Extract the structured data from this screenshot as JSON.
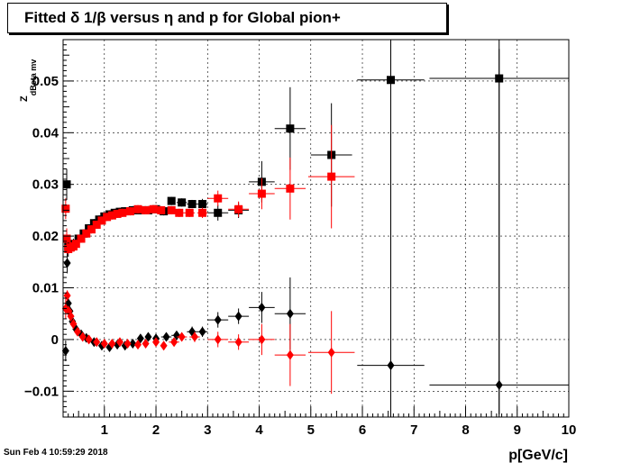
{
  "title": "Fitted δ 1/β versus η and p for Global pion+",
  "timestamp": "Sun Feb  4 10:59:29 2018",
  "chart_data": {
    "type": "scatter",
    "title": "Fitted δ 1/β versus η and p for Global pion+",
    "xlabel": "p[GeV/c]",
    "ylabel": "Z",
    "ylabel_sub": "dBeta mv",
    "xlim": [
      0.2,
      10
    ],
    "ylim": [
      -0.015,
      0.058
    ],
    "xticks": [
      1,
      2,
      3,
      4,
      5,
      6,
      7,
      8,
      9,
      10
    ],
    "xtick_labels": [
      "1",
      "2",
      "3",
      "4",
      "5",
      "6",
      "7",
      "8",
      "9",
      "10"
    ],
    "yticks": [
      -0.01,
      0,
      0.01,
      0.02,
      0.03,
      0.04,
      0.05
    ],
    "ytick_labels": [
      "−0.01",
      "0",
      "0.01",
      "0.02",
      "0.03",
      "0.04",
      "0.05"
    ],
    "grid": true,
    "series": [
      {
        "marker": "square",
        "color": "#000000",
        "points": [
          {
            "x": 0.27,
            "y": 0.03,
            "ey": 0.003,
            "ex": 0
          },
          {
            "x": 0.3,
            "y": 0.018,
            "ey": 0.002,
            "ex": 0
          },
          {
            "x": 0.35,
            "y": 0.018,
            "ey": 0.001,
            "ex": 0
          },
          {
            "x": 0.4,
            "y": 0.0185,
            "ey": 0.001,
            "ex": 0
          },
          {
            "x": 0.5,
            "y": 0.0195,
            "ey": 0.0008,
            "ex": 0
          },
          {
            "x": 0.6,
            "y": 0.0205,
            "ey": 0.0008,
            "ex": 0
          },
          {
            "x": 0.7,
            "y": 0.0215,
            "ey": 0.0008,
            "ex": 0
          },
          {
            "x": 0.8,
            "y": 0.0225,
            "ey": 0.0008,
            "ex": 0
          },
          {
            "x": 0.9,
            "y": 0.0232,
            "ey": 0.0008,
            "ex": 0
          },
          {
            "x": 1.0,
            "y": 0.0238,
            "ey": 0.0008,
            "ex": 0
          },
          {
            "x": 1.1,
            "y": 0.0242,
            "ey": 0.0008,
            "ex": 0
          },
          {
            "x": 1.2,
            "y": 0.0245,
            "ey": 0.0008,
            "ex": 0
          },
          {
            "x": 1.3,
            "y": 0.0247,
            "ey": 0.0008,
            "ex": 0
          },
          {
            "x": 1.4,
            "y": 0.0248,
            "ey": 0.0008,
            "ex": 0
          },
          {
            "x": 1.55,
            "y": 0.025,
            "ey": 0.0008,
            "ex": 0
          },
          {
            "x": 1.7,
            "y": 0.025,
            "ey": 0.0008,
            "ex": 0
          },
          {
            "x": 1.85,
            "y": 0.025,
            "ey": 0.0008,
            "ex": 0
          },
          {
            "x": 2.0,
            "y": 0.0252,
            "ey": 0.0008,
            "ex": 0
          },
          {
            "x": 2.15,
            "y": 0.0248,
            "ey": 0.0008,
            "ex": 0
          },
          {
            "x": 2.3,
            "y": 0.0268,
            "ey": 0.0008,
            "ex": 0
          },
          {
            "x": 2.5,
            "y": 0.0265,
            "ey": 0.0008,
            "ex": 0.1
          },
          {
            "x": 2.7,
            "y": 0.0262,
            "ey": 0.0008,
            "ex": 0.1
          },
          {
            "x": 2.9,
            "y": 0.0262,
            "ey": 0.001,
            "ex": 0.1
          },
          {
            "x": 3.2,
            "y": 0.0245,
            "ey": 0.0015,
            "ex": 0.2
          },
          {
            "x": 3.6,
            "y": 0.025,
            "ey": 0.0015,
            "ex": 0.2
          },
          {
            "x": 4.05,
            "y": 0.0305,
            "ey": 0.004,
            "ex": 0.25
          },
          {
            "x": 4.6,
            "y": 0.0408,
            "ey": 0.008,
            "ex": 0.3
          },
          {
            "x": 5.4,
            "y": 0.0357,
            "ey": 0.01,
            "ex": 0.4
          },
          {
            "x": 6.55,
            "y": 0.0502,
            "ey": 0.065,
            "ex": 0.65
          },
          {
            "x": 8.65,
            "y": 0.0505,
            "ey": 0.065,
            "ex": 1.35
          }
        ]
      },
      {
        "marker": "diamond",
        "color": "#000000",
        "points": [
          {
            "x": 0.25,
            "y": -0.0022,
            "ey": 0.002,
            "ex": 0
          },
          {
            "x": 0.28,
            "y": 0.0148,
            "ey": 0.002,
            "ex": 0
          },
          {
            "x": 0.3,
            "y": 0.007,
            "ey": 0.001,
            "ex": 0
          },
          {
            "x": 0.33,
            "y": 0.0055,
            "ey": 0.001,
            "ex": 0
          },
          {
            "x": 0.38,
            "y": 0.0035,
            "ey": 0.001,
            "ex": 0
          },
          {
            "x": 0.45,
            "y": 0.002,
            "ey": 0.0008,
            "ex": 0
          },
          {
            "x": 0.55,
            "y": 0.001,
            "ey": 0.0008,
            "ex": 0
          },
          {
            "x": 0.65,
            "y": 0.0003,
            "ey": 0.0008,
            "ex": 0
          },
          {
            "x": 0.8,
            "y": -0.0005,
            "ey": 0.0008,
            "ex": 0
          },
          {
            "x": 0.95,
            "y": -0.0012,
            "ey": 0.0008,
            "ex": 0
          },
          {
            "x": 1.1,
            "y": -0.0015,
            "ey": 0.0008,
            "ex": 0
          },
          {
            "x": 1.25,
            "y": -0.001,
            "ey": 0.0008,
            "ex": 0
          },
          {
            "x": 1.4,
            "y": -0.0012,
            "ey": 0.0008,
            "ex": 0
          },
          {
            "x": 1.55,
            "y": -0.0008,
            "ey": 0.0008,
            "ex": 0
          },
          {
            "x": 1.7,
            "y": 0.0002,
            "ey": 0.0008,
            "ex": 0
          },
          {
            "x": 1.85,
            "y": 0.0005,
            "ey": 0.0008,
            "ex": 0
          },
          {
            "x": 2.0,
            "y": 0.0002,
            "ey": 0.0008,
            "ex": 0
          },
          {
            "x": 2.2,
            "y": 0.0005,
            "ey": 0.0008,
            "ex": 0.1
          },
          {
            "x": 2.4,
            "y": 0.0008,
            "ey": 0.0008,
            "ex": 0.1
          },
          {
            "x": 2.7,
            "y": 0.0015,
            "ey": 0.001,
            "ex": 0.1
          },
          {
            "x": 2.9,
            "y": 0.0015,
            "ey": 0.001,
            "ex": 0.1
          },
          {
            "x": 3.2,
            "y": 0.0038,
            "ey": 0.0015,
            "ex": 0.2
          },
          {
            "x": 3.6,
            "y": 0.0045,
            "ey": 0.0015,
            "ex": 0.2
          },
          {
            "x": 4.05,
            "y": 0.0062,
            "ey": 0.003,
            "ex": 0.25
          },
          {
            "x": 4.6,
            "y": 0.005,
            "ey": 0.007,
            "ex": 0.3
          },
          {
            "x": 6.55,
            "y": -0.005,
            "ey": 0.065,
            "ex": 0.65
          },
          {
            "x": 8.65,
            "y": -0.0088,
            "ey": 0.065,
            "ex": 1.35
          }
        ]
      },
      {
        "marker": "square",
        "color": "#ff0000",
        "points": [
          {
            "x": 0.25,
            "y": 0.0253,
            "ey": 0.002,
            "ex": 0
          },
          {
            "x": 0.27,
            "y": 0.0195,
            "ey": 0.002,
            "ex": 0
          },
          {
            "x": 0.3,
            "y": 0.0175,
            "ey": 0.001,
            "ex": 0
          },
          {
            "x": 0.35,
            "y": 0.0178,
            "ey": 0.001,
            "ex": 0
          },
          {
            "x": 0.4,
            "y": 0.018,
            "ey": 0.001,
            "ex": 0
          },
          {
            "x": 0.45,
            "y": 0.0185,
            "ey": 0.0008,
            "ex": 0
          },
          {
            "x": 0.55,
            "y": 0.0195,
            "ey": 0.0008,
            "ex": 0
          },
          {
            "x": 0.65,
            "y": 0.0205,
            "ey": 0.0008,
            "ex": 0
          },
          {
            "x": 0.75,
            "y": 0.0213,
            "ey": 0.0008,
            "ex": 0
          },
          {
            "x": 0.85,
            "y": 0.0222,
            "ey": 0.0008,
            "ex": 0
          },
          {
            "x": 0.95,
            "y": 0.023,
            "ey": 0.0008,
            "ex": 0
          },
          {
            "x": 1.05,
            "y": 0.0237,
            "ey": 0.0008,
            "ex": 0
          },
          {
            "x": 1.15,
            "y": 0.024,
            "ey": 0.0008,
            "ex": 0
          },
          {
            "x": 1.25,
            "y": 0.0243,
            "ey": 0.0008,
            "ex": 0
          },
          {
            "x": 1.35,
            "y": 0.0245,
            "ey": 0.0008,
            "ex": 0
          },
          {
            "x": 1.5,
            "y": 0.0248,
            "ey": 0.0008,
            "ex": 0
          },
          {
            "x": 1.65,
            "y": 0.0252,
            "ey": 0.0008,
            "ex": 0
          },
          {
            "x": 1.8,
            "y": 0.025,
            "ey": 0.0008,
            "ex": 0
          },
          {
            "x": 1.95,
            "y": 0.0252,
            "ey": 0.0008,
            "ex": 0
          },
          {
            "x": 2.1,
            "y": 0.025,
            "ey": 0.0008,
            "ex": 0
          },
          {
            "x": 2.3,
            "y": 0.025,
            "ey": 0.0008,
            "ex": 0
          },
          {
            "x": 2.45,
            "y": 0.0245,
            "ey": 0.0008,
            "ex": 0.1
          },
          {
            "x": 2.65,
            "y": 0.0245,
            "ey": 0.0008,
            "ex": 0.1
          },
          {
            "x": 2.9,
            "y": 0.0245,
            "ey": 0.001,
            "ex": 0.1
          },
          {
            "x": 3.2,
            "y": 0.0273,
            "ey": 0.0015,
            "ex": 0.2
          },
          {
            "x": 3.6,
            "y": 0.0252,
            "ey": 0.0015,
            "ex": 0.2
          },
          {
            "x": 4.05,
            "y": 0.0282,
            "ey": 0.003,
            "ex": 0.25
          },
          {
            "x": 4.6,
            "y": 0.0292,
            "ey": 0.006,
            "ex": 0.3
          },
          {
            "x": 5.4,
            "y": 0.0315,
            "ey": 0.01,
            "ex": 0.45
          }
        ]
      },
      {
        "marker": "diamond",
        "color": "#ff0000",
        "points": [
          {
            "x": 0.25,
            "y": 0.006,
            "ey": 0.002,
            "ex": 0
          },
          {
            "x": 0.28,
            "y": 0.0085,
            "ey": 0.001,
            "ex": 0
          },
          {
            "x": 0.31,
            "y": 0.0055,
            "ey": 0.001,
            "ex": 0
          },
          {
            "x": 0.35,
            "y": 0.0045,
            "ey": 0.001,
            "ex": 0
          },
          {
            "x": 0.4,
            "y": 0.003,
            "ey": 0.001,
            "ex": 0
          },
          {
            "x": 0.48,
            "y": 0.0015,
            "ey": 0.0008,
            "ex": 0
          },
          {
            "x": 0.58,
            "y": 0.0005,
            "ey": 0.0008,
            "ex": 0
          },
          {
            "x": 0.7,
            "y": 0.0,
            "ey": 0.0008,
            "ex": 0
          },
          {
            "x": 0.85,
            "y": -0.0005,
            "ey": 0.0008,
            "ex": 0
          },
          {
            "x": 1.0,
            "y": -0.0008,
            "ey": 0.0008,
            "ex": 0
          },
          {
            "x": 1.15,
            "y": -0.0008,
            "ey": 0.0008,
            "ex": 0
          },
          {
            "x": 1.3,
            "y": -0.0005,
            "ey": 0.0008,
            "ex": 0
          },
          {
            "x": 1.45,
            "y": -0.0008,
            "ey": 0.0008,
            "ex": 0
          },
          {
            "x": 1.65,
            "y": -0.001,
            "ey": 0.0008,
            "ex": 0
          },
          {
            "x": 1.8,
            "y": -0.0008,
            "ey": 0.0008,
            "ex": 0
          },
          {
            "x": 2.0,
            "y": -0.0005,
            "ey": 0.0008,
            "ex": 0
          },
          {
            "x": 2.15,
            "y": -0.0012,
            "ey": 0.0008,
            "ex": 0
          },
          {
            "x": 2.35,
            "y": -0.0005,
            "ey": 0.0008,
            "ex": 0.1
          },
          {
            "x": 2.5,
            "y": 0.0005,
            "ey": 0.0008,
            "ex": 0.1
          },
          {
            "x": 2.75,
            "y": 0.0005,
            "ey": 0.001,
            "ex": 0.1
          },
          {
            "x": 3.2,
            "y": 0.0,
            "ey": 0.0015,
            "ex": 0.2
          },
          {
            "x": 3.6,
            "y": -0.0005,
            "ey": 0.0015,
            "ex": 0.2
          },
          {
            "x": 4.05,
            "y": 0.0,
            "ey": 0.003,
            "ex": 0.25
          },
          {
            "x": 4.6,
            "y": -0.003,
            "ey": 0.006,
            "ex": 0.3
          },
          {
            "x": 5.4,
            "y": -0.0025,
            "ey": 0.008,
            "ex": 0.45
          }
        ]
      }
    ]
  }
}
